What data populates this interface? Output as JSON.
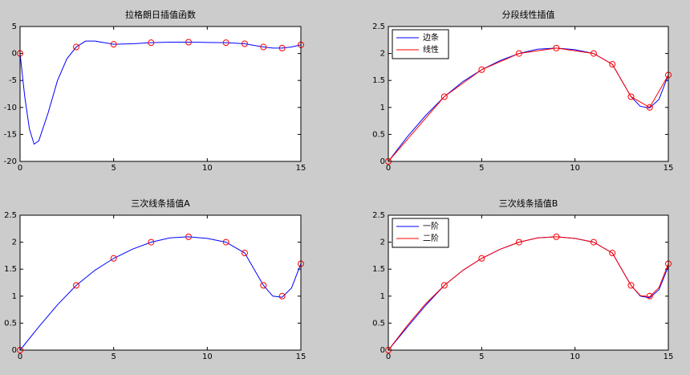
{
  "chart_data": [
    {
      "type": "line",
      "title": "拉格朗日插值函数",
      "xlim": [
        0,
        15
      ],
      "ylim": [
        -20,
        5
      ],
      "xticks": [
        0,
        5,
        10,
        15
      ],
      "yticks": [
        -20,
        -15,
        -10,
        -5,
        0,
        5
      ],
      "series": [
        {
          "color": "#0000ff",
          "x": [
            0,
            0.25,
            0.5,
            0.75,
            1,
            1.5,
            2,
            2.5,
            3,
            3.5,
            4,
            5,
            6,
            7,
            8,
            9,
            10,
            11,
            12,
            13,
            13.5,
            14,
            14.5,
            15
          ],
          "values": [
            0,
            -8,
            -14,
            -16.8,
            -16.2,
            -11,
            -5,
            -1,
            1.2,
            2.3,
            2.3,
            1.7,
            1.8,
            2.0,
            2.1,
            2.1,
            2.05,
            2.0,
            1.8,
            1.2,
            1.0,
            1.0,
            1.2,
            1.6
          ]
        }
      ],
      "points": {
        "color": "#ff0000",
        "x": [
          0,
          3,
          5,
          7,
          9,
          11,
          12,
          13,
          14,
          15
        ],
        "values": [
          0,
          1.2,
          1.7,
          2.0,
          2.1,
          2.0,
          1.8,
          1.2,
          1.0,
          1.6
        ]
      }
    },
    {
      "type": "line",
      "title": "分段线性插值",
      "xlim": [
        0,
        15
      ],
      "ylim": [
        0,
        2.5
      ],
      "xticks": [
        0,
        5,
        10,
        15
      ],
      "yticks": [
        0,
        0.5,
        1,
        1.5,
        2,
        2.5
      ],
      "legend": "top-left",
      "series": [
        {
          "name": "边条",
          "color": "#0000ff",
          "x": [
            0,
            1,
            2,
            3,
            4,
            5,
            6,
            7,
            8,
            9,
            10,
            11,
            12,
            12.5,
            13,
            13.5,
            14,
            14.5,
            15
          ],
          "values": [
            0,
            0.45,
            0.85,
            1.2,
            1.48,
            1.7,
            1.87,
            2.0,
            2.08,
            2.1,
            2.07,
            2.0,
            1.8,
            1.5,
            1.2,
            1.02,
            0.99,
            1.15,
            1.6
          ]
        },
        {
          "name": "线性",
          "color": "#ff0000",
          "x": [
            0,
            3,
            5,
            7,
            9,
            11,
            12,
            13,
            14,
            15
          ],
          "values": [
            0,
            1.2,
            1.7,
            2.0,
            2.1,
            2.0,
            1.8,
            1.2,
            1.0,
            1.6
          ]
        }
      ],
      "points": {
        "color": "#ff0000",
        "x": [
          0,
          3,
          5,
          7,
          9,
          11,
          12,
          13,
          14,
          15
        ],
        "values": [
          0,
          1.2,
          1.7,
          2.0,
          2.1,
          2.0,
          1.8,
          1.2,
          1.0,
          1.6
        ]
      }
    },
    {
      "type": "line",
      "title": "三次线条插值A",
      "xlim": [
        0,
        15
      ],
      "ylim": [
        0,
        2.5
      ],
      "xticks": [
        0,
        5,
        10,
        15
      ],
      "yticks": [
        0,
        0.5,
        1,
        1.5,
        2,
        2.5
      ],
      "series": [
        {
          "color": "#0000ff",
          "x": [
            0,
            1,
            2,
            3,
            4,
            5,
            6,
            7,
            8,
            9,
            10,
            11,
            12,
            12.5,
            13,
            13.5,
            14,
            14.5,
            15
          ],
          "values": [
            0,
            0.43,
            0.84,
            1.2,
            1.48,
            1.7,
            1.87,
            2.0,
            2.08,
            2.1,
            2.07,
            2.0,
            1.8,
            1.5,
            1.2,
            1.0,
            0.98,
            1.15,
            1.6
          ]
        }
      ],
      "points": {
        "color": "#ff0000",
        "x": [
          0,
          3,
          5,
          7,
          9,
          11,
          12,
          13,
          14,
          15
        ],
        "values": [
          0,
          1.2,
          1.7,
          2.0,
          2.1,
          2.0,
          1.8,
          1.2,
          1.0,
          1.6
        ]
      }
    },
    {
      "type": "line",
      "title": "三次线条插值B",
      "xlim": [
        0,
        15
      ],
      "ylim": [
        0,
        2.5
      ],
      "xticks": [
        0,
        5,
        10,
        15
      ],
      "yticks": [
        0,
        0.5,
        1,
        1.5,
        2,
        2.5
      ],
      "legend": "top-left",
      "series": [
        {
          "name": "一阶",
          "color": "#0000ff",
          "x": [
            0,
            1,
            2,
            3,
            4,
            5,
            6,
            7,
            8,
            9,
            10,
            11,
            12,
            12.5,
            13,
            13.5,
            14,
            14.5,
            15
          ],
          "values": [
            0,
            0.42,
            0.83,
            1.2,
            1.48,
            1.7,
            1.87,
            2.0,
            2.08,
            2.1,
            2.07,
            2.0,
            1.8,
            1.5,
            1.2,
            1.0,
            0.97,
            1.12,
            1.55
          ]
        },
        {
          "name": "二阶",
          "color": "#ff0000",
          "x": [
            0,
            1,
            2,
            3,
            4,
            5,
            6,
            7,
            8,
            9,
            10,
            11,
            12,
            12.5,
            13,
            13.5,
            14,
            14.5,
            15
          ],
          "values": [
            0,
            0.45,
            0.86,
            1.2,
            1.48,
            1.7,
            1.87,
            2.0,
            2.08,
            2.1,
            2.07,
            2.0,
            1.8,
            1.5,
            1.2,
            1.01,
            0.99,
            1.16,
            1.6
          ]
        }
      ],
      "points": {
        "color": "#ff0000",
        "x": [
          0,
          3,
          5,
          7,
          9,
          11,
          12,
          13,
          14,
          15
        ],
        "values": [
          0,
          1.2,
          1.7,
          2.0,
          2.1,
          2.0,
          1.8,
          1.2,
          1.0,
          1.6
        ]
      }
    }
  ]
}
